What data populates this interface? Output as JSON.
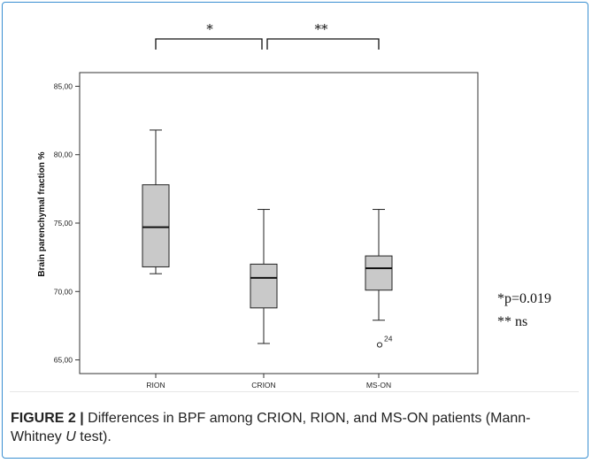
{
  "chart_data": {
    "type": "boxplot",
    "title": "",
    "xlabel": "",
    "ylabel": "Brain parenchymal fraction  %",
    "ylim": [
      64.0,
      86.0
    ],
    "y_ticks": [
      "65,00",
      "70,00",
      "75,00",
      "80,00",
      "85,00"
    ],
    "y_tick_values": [
      65,
      70,
      75,
      80,
      85
    ],
    "grid": false,
    "categories": [
      "RION",
      "CRION",
      "MS-ON"
    ],
    "boxes": [
      {
        "label": "RION",
        "min": 71.3,
        "q1": 71.8,
        "median": 74.7,
        "q3": 77.8,
        "max": 81.8,
        "outliers": []
      },
      {
        "label": "CRION",
        "min": 66.2,
        "q1": 68.8,
        "median": 71.0,
        "q3": 72.0,
        "max": 76.0,
        "outliers": []
      },
      {
        "label": "MS-ON",
        "min": 67.9,
        "q1": 70.1,
        "median": 71.7,
        "q3": 72.6,
        "max": 76.0,
        "outliers": [
          {
            "value": 66.1,
            "label": "24"
          }
        ]
      }
    ],
    "box_color": "#c9c9c9",
    "significance": [
      {
        "from": "RION",
        "to": "CRION",
        "label": "*"
      },
      {
        "from": "CRION",
        "to": "MS-ON",
        "label": "**"
      }
    ],
    "annotations": [
      "*p=0.019",
      "** ns"
    ]
  },
  "caption": {
    "label": "FIGURE 2 |",
    "text_before": " Differences in BPF among CRION, RION, and MS-ON patients (Mann-Whitney ",
    "italic": "U",
    "text_after": " test)."
  },
  "colors": {
    "frame": "#3a8fd1",
    "box_fill": "#c9c9c9",
    "caption_rule": "#e6e6e6"
  }
}
